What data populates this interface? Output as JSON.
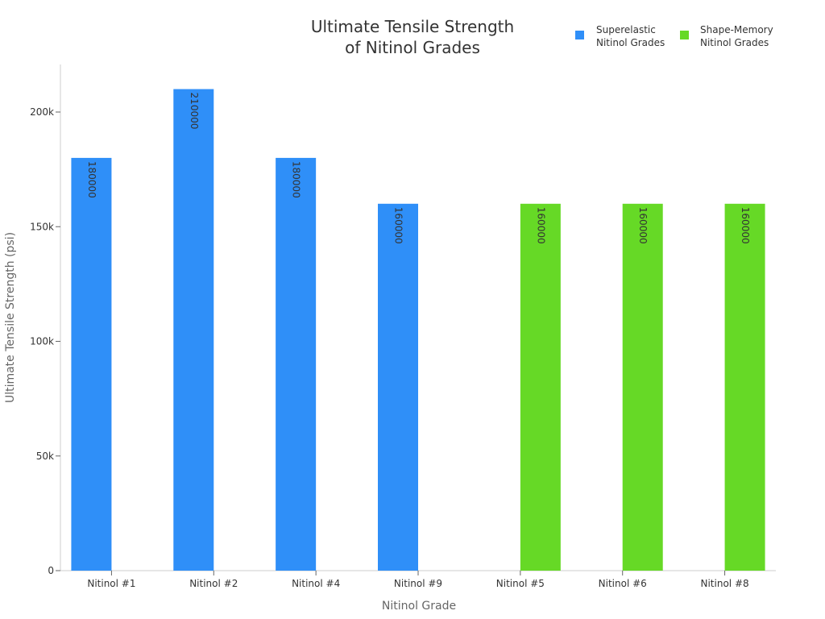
{
  "chart_data": {
    "type": "bar",
    "title_lines": [
      "Ultimate Tensile Strength",
      "of Nitinol Grades"
    ],
    "xlabel": "Nitinol Grade",
    "ylabel": "Ultimate Tensile Strength (psi)",
    "categories": [
      "Nitinol #1",
      "Nitinol #2",
      "Nitinol #4",
      "Nitinol #9",
      "Nitinol #5",
      "Nitinol #6",
      "Nitinol #8"
    ],
    "series": [
      {
        "name_lines": [
          "Superelastic",
          "Nitinol Grades"
        ],
        "color": "#2f8ff8",
        "values": [
          180000,
          210000,
          180000,
          160000,
          null,
          null,
          null
        ]
      },
      {
        "name_lines": [
          "Shape-Memory",
          "Nitinol Grades"
        ],
        "color": "#66d926",
        "values": [
          null,
          null,
          null,
          null,
          160000,
          160000,
          160000
        ]
      }
    ],
    "ylim": [
      0,
      220000
    ],
    "yticks": [
      0,
      50000,
      100000,
      150000,
      200000
    ],
    "ytick_labels": [
      "0",
      "50k",
      "100k",
      "150k",
      "200k"
    ],
    "grid": false,
    "legend_position": "top-right",
    "data_labels": true
  }
}
